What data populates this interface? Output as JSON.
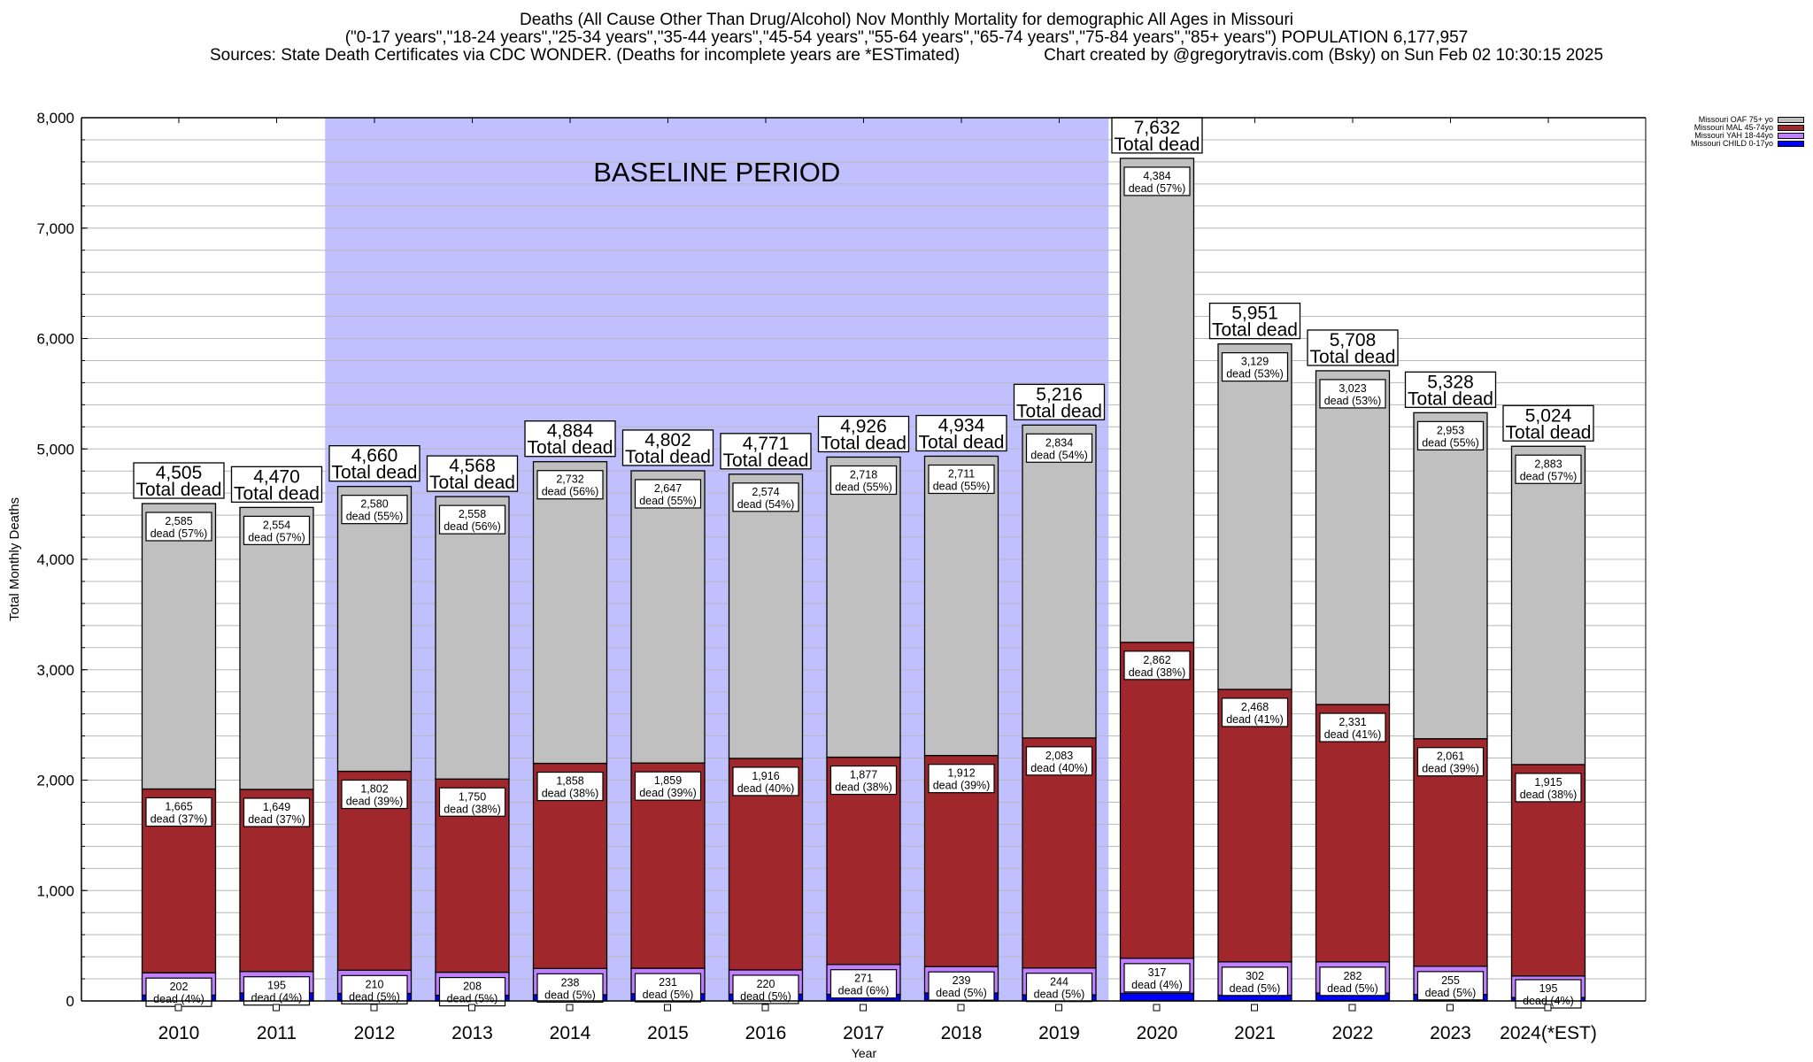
{
  "title": {
    "line1": "Deaths (All Cause Other Than Drug/Alcohol) Nov Monthly Mortality for demographic All Ages in Missouri",
    "line2": "(\"0-17 years\",\"18-24 years\",\"25-34 years\",\"35-44 years\",\"45-54 years\",\"55-64 years\",\"65-74 years\",\"75-84 years\",\"85+ years\") POPULATION 6,177,957",
    "line3_left": "Sources: State Death Certificates via CDC WONDER. (Deaths for incomplete years are *ESTimated)",
    "line3_right": "Chart created by @gregorytravis.com (Bsky) on Sun Feb 02 10:30:15 2025"
  },
  "chart_data": {
    "type": "bar",
    "stacked": true,
    "title": "Deaths (All Cause Other Than Drug/Alcohol) Nov Monthly Mortality for demographic All Ages in Missouri",
    "xlabel": "Year",
    "ylabel": "Total Monthly Deaths",
    "ylim": [
      0,
      8000
    ],
    "yticks": [
      0,
      1000,
      2000,
      3000,
      4000,
      5000,
      6000,
      7000,
      8000
    ],
    "ytick_labels": [
      "0",
      "1,000",
      "2,000",
      "3,000",
      "4,000",
      "5,000",
      "6,000",
      "7,000",
      "8,000"
    ],
    "grid": true,
    "legend_position": "top-right",
    "categories": [
      "2010",
      "2011",
      "2012",
      "2013",
      "2014",
      "2015",
      "2016",
      "2017",
      "2018",
      "2019",
      "2020",
      "2021",
      "2022",
      "2023",
      "2024(*EST)"
    ],
    "series": [
      {
        "name": "Missouri CHILD 0-17yo",
        "color": "#0000ff",
        "values": [
          53,
          72,
          68,
          52,
          56,
          65,
          61,
          60,
          72,
          55,
          69,
          52,
          72,
          59,
          31
        ]
      },
      {
        "name": "Missouri YAH 18-44yo",
        "color": "#c080ff",
        "values": [
          202,
          195,
          210,
          208,
          238,
          231,
          220,
          271,
          239,
          244,
          317,
          302,
          282,
          255,
          195
        ],
        "pct_labels": [
          "4%",
          "4%",
          "5%",
          "5%",
          "5%",
          "5%",
          "5%",
          "6%",
          "5%",
          "5%",
          "4%",
          "5%",
          "5%",
          "5%",
          "4%"
        ]
      },
      {
        "name": "Missouri MAL 45-74yo",
        "color": "#a0282d",
        "values": [
          1665,
          1649,
          1802,
          1750,
          1858,
          1859,
          1916,
          1877,
          1912,
          2083,
          2862,
          2468,
          2331,
          2061,
          1915
        ],
        "pct_labels": [
          "37%",
          "37%",
          "39%",
          "38%",
          "38%",
          "39%",
          "40%",
          "38%",
          "39%",
          "40%",
          "38%",
          "41%",
          "41%",
          "39%",
          "38%"
        ]
      },
      {
        "name": "Missouri OAF 75+ yo",
        "color": "#c0c0c0",
        "values": [
          2585,
          2554,
          2580,
          2558,
          2732,
          2647,
          2574,
          2718,
          2711,
          2834,
          4384,
          3129,
          3023,
          2953,
          2883
        ],
        "pct_labels": [
          "57%",
          "57%",
          "55%",
          "56%",
          "56%",
          "55%",
          "54%",
          "55%",
          "55%",
          "54%",
          "57%",
          "53%",
          "53%",
          "55%",
          "57%"
        ]
      }
    ],
    "totals": [
      4505,
      4470,
      4660,
      4568,
      4884,
      4802,
      4771,
      4926,
      4934,
      5216,
      7632,
      5951,
      5708,
      5328,
      5024
    ],
    "total_label_suffix": "Total dead",
    "segment_label_word": "dead",
    "annotations": [
      {
        "text": "BASELINE PERIOD",
        "span_categories": [
          "2012",
          "2019"
        ],
        "fill": "#c0c0ff"
      }
    ]
  },
  "legend": {
    "items": [
      {
        "label": "Missouri OAF 75+ yo",
        "color": "#c0c0c0"
      },
      {
        "label": "Missouri MAL 45-74yo",
        "color": "#a0282d"
      },
      {
        "label": "Missouri YAH 18-44yo",
        "color": "#c080ff"
      },
      {
        "label": "Missouri CHILD 0-17yo",
        "color": "#0000ff"
      }
    ]
  }
}
